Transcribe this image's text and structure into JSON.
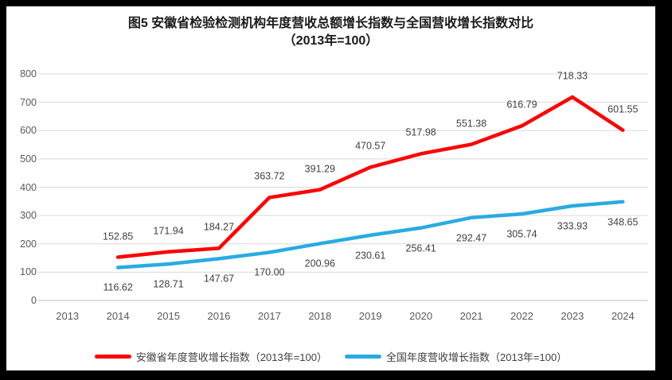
{
  "title": {
    "line1": "图5  安徽省检验检测机构年度营收总额增长指数与全国营收增长指数对比",
    "line2": "（2013年=100）"
  },
  "chart_data": {
    "type": "line",
    "categories": [
      "2013",
      "2014",
      "2015",
      "2016",
      "2017",
      "2018",
      "2019",
      "2020",
      "2021",
      "2022",
      "2023",
      "2024"
    ],
    "series": [
      {
        "name": "安徽省年度营收增长指数（2013年=100）",
        "color": "#FF0000",
        "start_index": 1,
        "values": [
          152.85,
          171.94,
          184.27,
          363.72,
          391.29,
          470.57,
          517.98,
          551.38,
          616.79,
          718.33,
          601.55
        ],
        "label_side": "above"
      },
      {
        "name": "全国年度营收增长指数（2013年=100）",
        "color": "#29ABE2",
        "start_index": 1,
        "values": [
          116.62,
          128.71,
          147.67,
          170.0,
          200.96,
          230.61,
          256.41,
          292.47,
          305.74,
          333.93,
          348.65
        ],
        "label_side": "below"
      }
    ],
    "ylim": [
      0,
      800
    ],
    "ytick_step": 100,
    "grid": true,
    "data_labels": true,
    "data_label_decimals": 2,
    "legend_position": "bottom",
    "xlabel": "",
    "ylabel": ""
  },
  "colors": {
    "grid": "#D9D9D9",
    "axis": "#BFBFBF",
    "tick_label": "#595959",
    "data_label": "#404040",
    "frame": "#000000",
    "background": "#FFFFFF"
  }
}
